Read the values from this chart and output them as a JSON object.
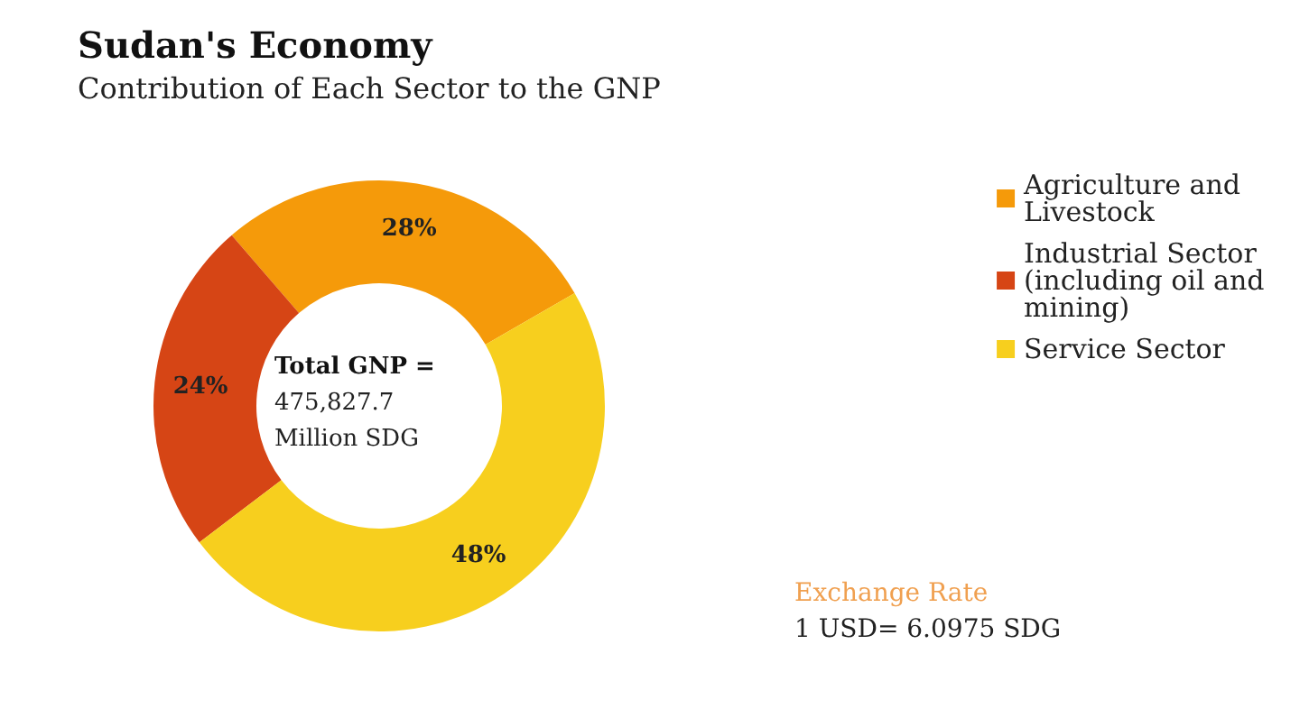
{
  "chart_data": {
    "type": "donut",
    "title": "Sudan's Economy",
    "subtitle": "Contribution of Each Sector to the GNP",
    "categories": [
      "Agriculture and Livestock",
      "Industrial Sector (including oil and mining)",
      "Service Sector"
    ],
    "values": [
      28,
      24,
      48
    ],
    "colors": [
      "#f59a0a",
      "#d64515",
      "#f7cf1e"
    ],
    "value_labels": [
      "28%",
      "24%",
      "48%"
    ],
    "legend": "top right",
    "annotations": [
      "Total GNP =\n475,827.7\nMillion SDG",
      "Exchange Rate\n1 USD= 6.0975 SDG"
    ]
  }
}
